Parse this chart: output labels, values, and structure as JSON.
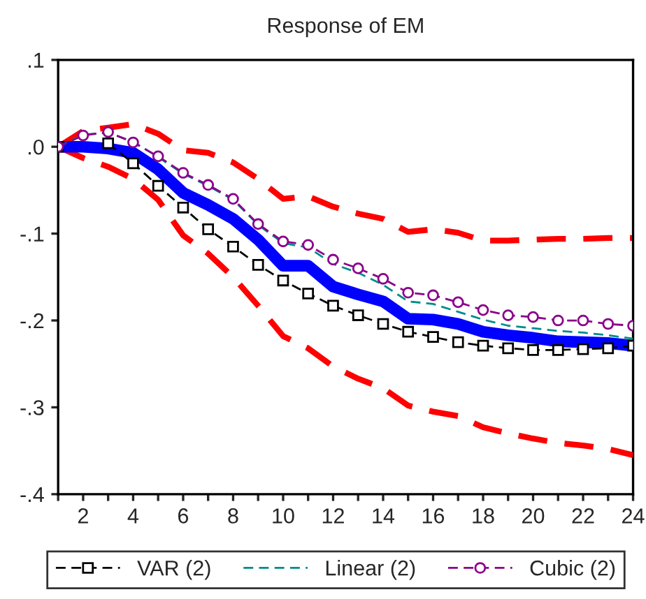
{
  "chart_data": {
    "type": "line",
    "title": "Response of EM",
    "x": [
      1,
      2,
      3,
      4,
      5,
      6,
      7,
      8,
      9,
      10,
      11,
      12,
      13,
      14,
      15,
      16,
      17,
      18,
      19,
      20,
      21,
      22,
      23,
      24
    ],
    "xlim": [
      1,
      24
    ],
    "xticks": [
      {
        "value": 1,
        "label": null
      },
      2,
      {
        "value": 3,
        "label": null
      },
      4,
      {
        "value": 5,
        "label": null
      },
      6,
      {
        "value": 7,
        "label": null
      },
      8,
      {
        "value": 9,
        "label": null
      },
      10,
      {
        "value": 11,
        "label": null
      },
      12,
      {
        "value": 13,
        "label": null
      },
      14,
      {
        "value": 15,
        "label": null
      },
      16,
      {
        "value": 17,
        "label": null
      },
      18,
      {
        "value": 19,
        "label": null
      },
      20,
      {
        "value": 21,
        "label": null
      },
      22,
      {
        "value": 23,
        "label": null
      },
      24
    ],
    "ylim": [
      -0.4,
      0.1
    ],
    "yticks": [
      {
        "value": -0.4,
        "label": "-.4"
      },
      {
        "value": -0.3,
        "label": "-.3"
      },
      {
        "value": -0.2,
        "label": "-.2"
      },
      {
        "value": -0.1,
        "label": "-.1"
      },
      {
        "value": 0,
        "label": ".0"
      },
      {
        "value": 0.1,
        "label": ".1"
      }
    ],
    "grid": false,
    "legend": "bottom",
    "series": [
      {
        "color": "#ff0000",
        "line_style": "dashed",
        "marker": "none",
        "values": [
          0,
          0.018,
          0.022,
          0.026,
          0.015,
          -0.004,
          -0.007,
          -0.018,
          -0.037,
          -0.06,
          -0.057,
          -0.069,
          -0.077,
          -0.083,
          -0.098,
          -0.095,
          -0.099,
          -0.108,
          -0.108,
          -0.107,
          -0.106,
          -0.106,
          -0.105,
          -0.105
        ]
      },
      {
        "color": "#ff0000",
        "line_style": "dashed",
        "marker": "none",
        "values": [
          0,
          -0.013,
          -0.023,
          -0.037,
          -0.061,
          -0.102,
          -0.123,
          -0.15,
          -0.183,
          -0.218,
          -0.232,
          -0.253,
          -0.267,
          -0.278,
          -0.298,
          -0.305,
          -0.31,
          -0.323,
          -0.33,
          -0.336,
          -0.341,
          -0.344,
          -0.348,
          -0.355
        ]
      },
      {
        "color": "#0000ff",
        "line_style": "solid",
        "marker": "none",
        "values": [
          0,
          0,
          -0.002,
          -0.007,
          -0.026,
          -0.053,
          -0.067,
          -0.083,
          -0.107,
          -0.137,
          -0.137,
          -0.161,
          -0.17,
          -0.178,
          -0.198,
          -0.199,
          -0.204,
          -0.213,
          -0.217,
          -0.22,
          -0.224,
          -0.225,
          -0.226,
          -0.229
        ]
      },
      {
        "name": "VAR (2)",
        "color": "#000000",
        "line_style": "dashed",
        "marker": "square",
        "values": [
          0,
          null,
          0.004,
          -0.019,
          -0.045,
          -0.07,
          -0.095,
          -0.115,
          -0.136,
          -0.154,
          -0.169,
          -0.183,
          -0.194,
          -0.204,
          -0.213,
          -0.219,
          -0.225,
          -0.229,
          -0.232,
          -0.234,
          -0.234,
          -0.233,
          -0.232,
          -0.229
        ]
      },
      {
        "name": "Linear (2)",
        "color": "#008b8b",
        "line_style": "dashed",
        "marker": "none",
        "values": [
          0,
          0.014,
          0.016,
          0.006,
          -0.012,
          -0.031,
          -0.045,
          -0.061,
          -0.09,
          -0.111,
          -0.116,
          -0.135,
          -0.145,
          -0.159,
          -0.178,
          -0.181,
          -0.19,
          -0.199,
          -0.206,
          -0.209,
          -0.212,
          -0.214,
          -0.217,
          -0.221
        ]
      },
      {
        "name": "Cubic (2)",
        "color": "#8b008b",
        "line_style": "dashed",
        "marker": "circle",
        "values": [
          0,
          0.013,
          0.017,
          0.005,
          -0.011,
          -0.03,
          -0.044,
          -0.06,
          -0.089,
          -0.109,
          -0.113,
          -0.13,
          -0.14,
          -0.152,
          -0.168,
          -0.171,
          -0.179,
          -0.188,
          -0.194,
          -0.196,
          -0.2,
          -0.2,
          -0.204,
          -0.206
        ]
      }
    ]
  }
}
